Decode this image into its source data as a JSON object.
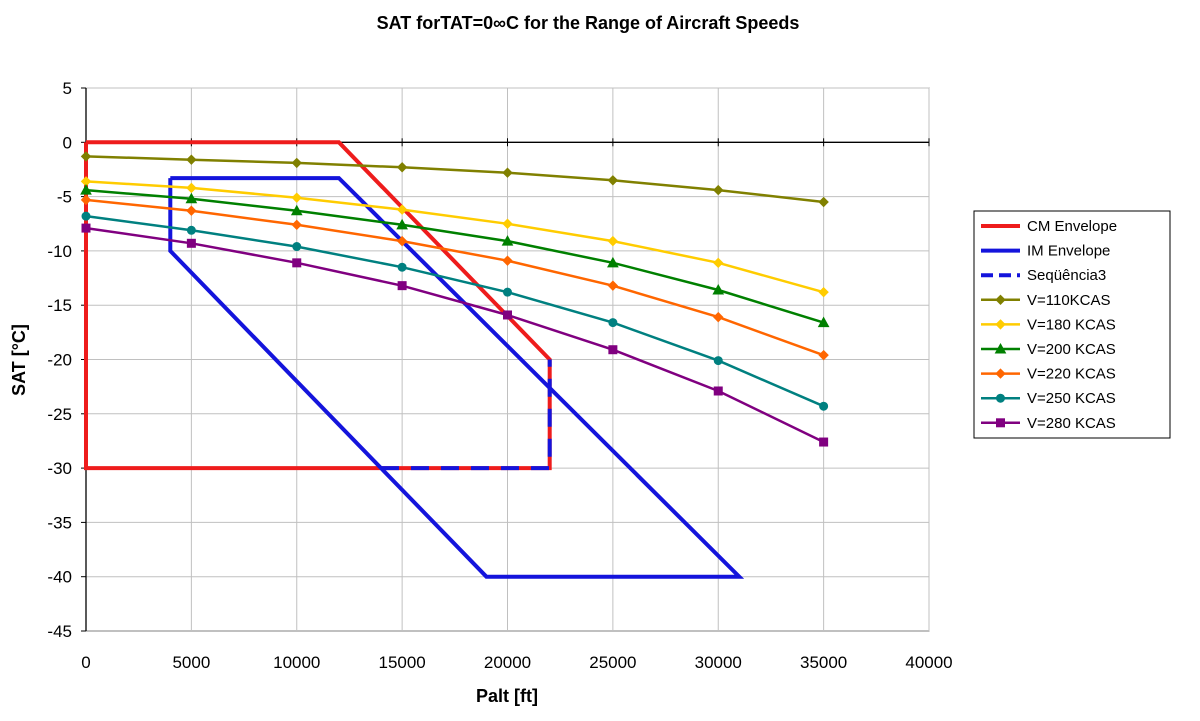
{
  "chart_data": {
    "type": "line",
    "title": "SAT forTAT=0∞C for the Range of Aircraft Speeds",
    "xlabel": "Palt [ft]",
    "ylabel": "SAT [°C]",
    "xlim": [
      0,
      40000
    ],
    "ylim": [
      -45,
      5
    ],
    "x_ticks": [
      0,
      5000,
      10000,
      15000,
      20000,
      25000,
      30000,
      35000,
      40000
    ],
    "y_ticks": [
      5,
      0,
      -5,
      -10,
      -15,
      -20,
      -25,
      -30,
      -35,
      -40,
      -45
    ],
    "grid": true,
    "legend_position": "right",
    "series": [
      {
        "name": "CM Envelope",
        "color": "#ee1c1c",
        "marker": "none",
        "dash": "solid",
        "x": [
          0,
          12000,
          22000,
          22000,
          0,
          0
        ],
        "y": [
          0,
          0,
          -20,
          -30,
          -30,
          0
        ]
      },
      {
        "name": "IM Envelope",
        "color": "#1414dc",
        "marker": "none",
        "dash": "solid",
        "x": [
          4000,
          12000,
          31000,
          19000,
          4000,
          4000
        ],
        "y": [
          -3.3,
          -3.3,
          -40,
          -40,
          -10,
          -3.3
        ]
      },
      {
        "name": "Seqüência3",
        "color": "#1414dc",
        "marker": "none",
        "dash": "dashed",
        "x": [
          14000,
          22000,
          22000
        ],
        "y": [
          -30,
          -30,
          -20
        ]
      },
      {
        "name": "V=110KCAS",
        "color": "#808000",
        "marker": "diamond",
        "dash": "solid",
        "x": [
          0,
          5000,
          10000,
          15000,
          20000,
          25000,
          30000,
          35000
        ],
        "y": [
          -1.3,
          -1.6,
          -1.9,
          -2.3,
          -2.8,
          -3.5,
          -4.4,
          -5.5
        ]
      },
      {
        "name": "V=180 KCAS",
        "color": "#ffcc00",
        "marker": "diamond",
        "dash": "solid",
        "x": [
          0,
          5000,
          10000,
          15000,
          20000,
          25000,
          30000,
          35000
        ],
        "y": [
          -3.6,
          -4.2,
          -5.1,
          -6.2,
          -7.5,
          -9.1,
          -11.1,
          -13.8
        ]
      },
      {
        "name": "V=200 KCAS",
        "color": "#008000",
        "marker": "triangle",
        "dash": "solid",
        "x": [
          0,
          5000,
          10000,
          15000,
          20000,
          25000,
          30000,
          35000
        ],
        "y": [
          -4.4,
          -5.2,
          -6.3,
          -7.6,
          -9.1,
          -11.1,
          -13.6,
          -16.6
        ]
      },
      {
        "name": "V=220 KCAS",
        "color": "#ff6600",
        "marker": "diamond",
        "dash": "solid",
        "x": [
          0,
          5000,
          10000,
          15000,
          20000,
          25000,
          30000,
          35000
        ],
        "y": [
          -5.3,
          -6.3,
          -7.6,
          -9.1,
          -10.9,
          -13.2,
          -16.1,
          -19.6
        ]
      },
      {
        "name": "V=250 KCAS",
        "color": "#008080",
        "marker": "circle",
        "dash": "solid",
        "x": [
          0,
          5000,
          10000,
          15000,
          20000,
          25000,
          30000,
          35000
        ],
        "y": [
          -6.8,
          -8.1,
          -9.6,
          -11.5,
          -13.8,
          -16.6,
          -20.1,
          -24.3
        ]
      },
      {
        "name": "V=280 KCAS",
        "color": "#800080",
        "marker": "square",
        "dash": "solid",
        "x": [
          0,
          5000,
          10000,
          15000,
          20000,
          25000,
          30000,
          35000
        ],
        "y": [
          -7.9,
          -9.3,
          -11.1,
          -13.2,
          -15.9,
          -19.1,
          -22.9,
          -27.6
        ]
      }
    ]
  }
}
